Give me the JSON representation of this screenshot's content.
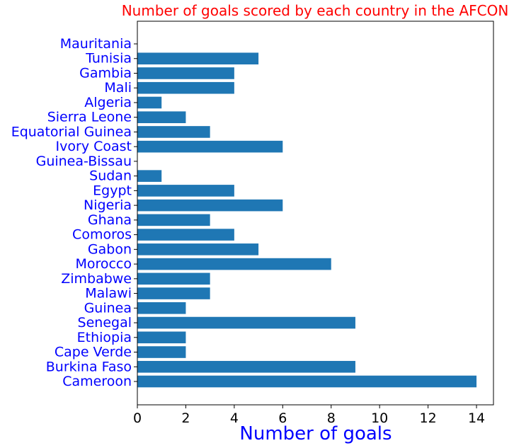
{
  "chart_data": {
    "type": "bar",
    "orientation": "horizontal",
    "title": "Number of goals scored by each country in the AFCON",
    "xlabel": "Number of goals",
    "ylabel": "",
    "categories": [
      "Cameroon",
      "Burkina Faso",
      "Cape Verde",
      "Ethiopia",
      "Senegal",
      "Guinea",
      "Malawi",
      "Zimbabwe",
      "Morocco",
      "Gabon",
      "Comoros",
      "Ghana",
      "Nigeria",
      "Egypt",
      "Sudan",
      "Guinea-Bissau",
      "Ivory Coast",
      "Equatorial Guinea",
      "Sierra Leone",
      "Algeria",
      "Mali",
      "Gambia",
      "Tunisia",
      "Mauritania"
    ],
    "values": [
      14,
      9,
      2,
      2,
      9,
      2,
      3,
      3,
      8,
      5,
      4,
      3,
      6,
      4,
      1,
      0,
      6,
      3,
      2,
      1,
      4,
      4,
      5,
      0
    ],
    "xlim": [
      0,
      14.7
    ],
    "xticks": [
      0,
      2,
      4,
      6,
      8,
      10,
      12,
      14
    ],
    "grid": false,
    "legend": "none",
    "colors": {
      "bar": "#1f77b4",
      "title": "#ff0000",
      "labels": "#0000ff",
      "axis": "#000000"
    }
  }
}
